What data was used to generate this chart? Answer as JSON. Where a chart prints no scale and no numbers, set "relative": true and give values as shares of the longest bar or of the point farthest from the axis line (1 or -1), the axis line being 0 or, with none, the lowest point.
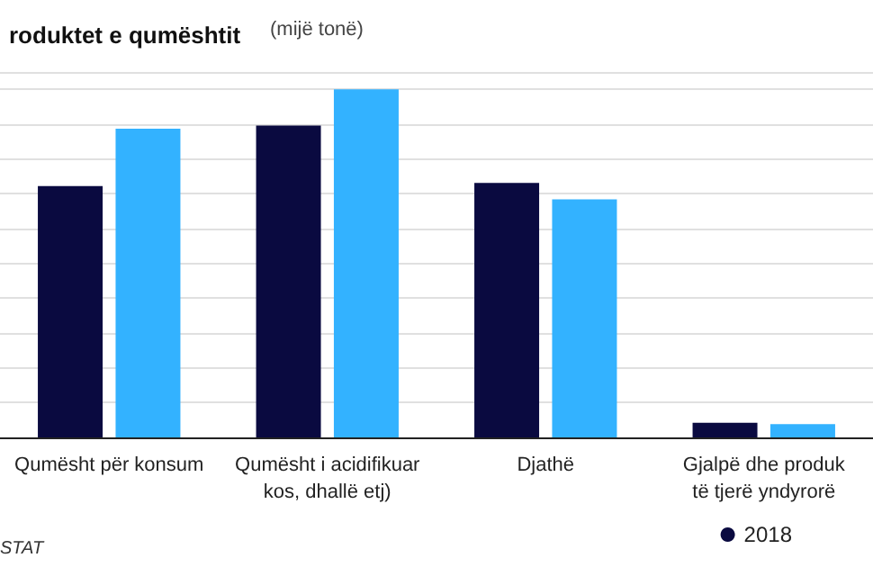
{
  "chart_data": {
    "type": "bar",
    "title": "roduktet e qumështit",
    "subtitle": "(mijë tonë)",
    "categories": [
      "Qumësht për konsum",
      "Qumësht i acidifikuar\nkos, dhallë etj)",
      "Djathë",
      "Gjalpë dhe produk\ntë tjerë yndyrorë"
    ],
    "relative": true,
    "grid": "y",
    "legend": "bottom right",
    "annotations": [
      "STAT"
    ],
    "series": [
      {
        "name": "2018",
        "color": "#0a0a40",
        "values": [
          0.722,
          0.896,
          0.731,
          0.042
        ]
      },
      {
        "color": "#33b2ff",
        "values": [
          0.887,
          1,
          0.684,
          0.038
        ]
      }
    ]
  }
}
